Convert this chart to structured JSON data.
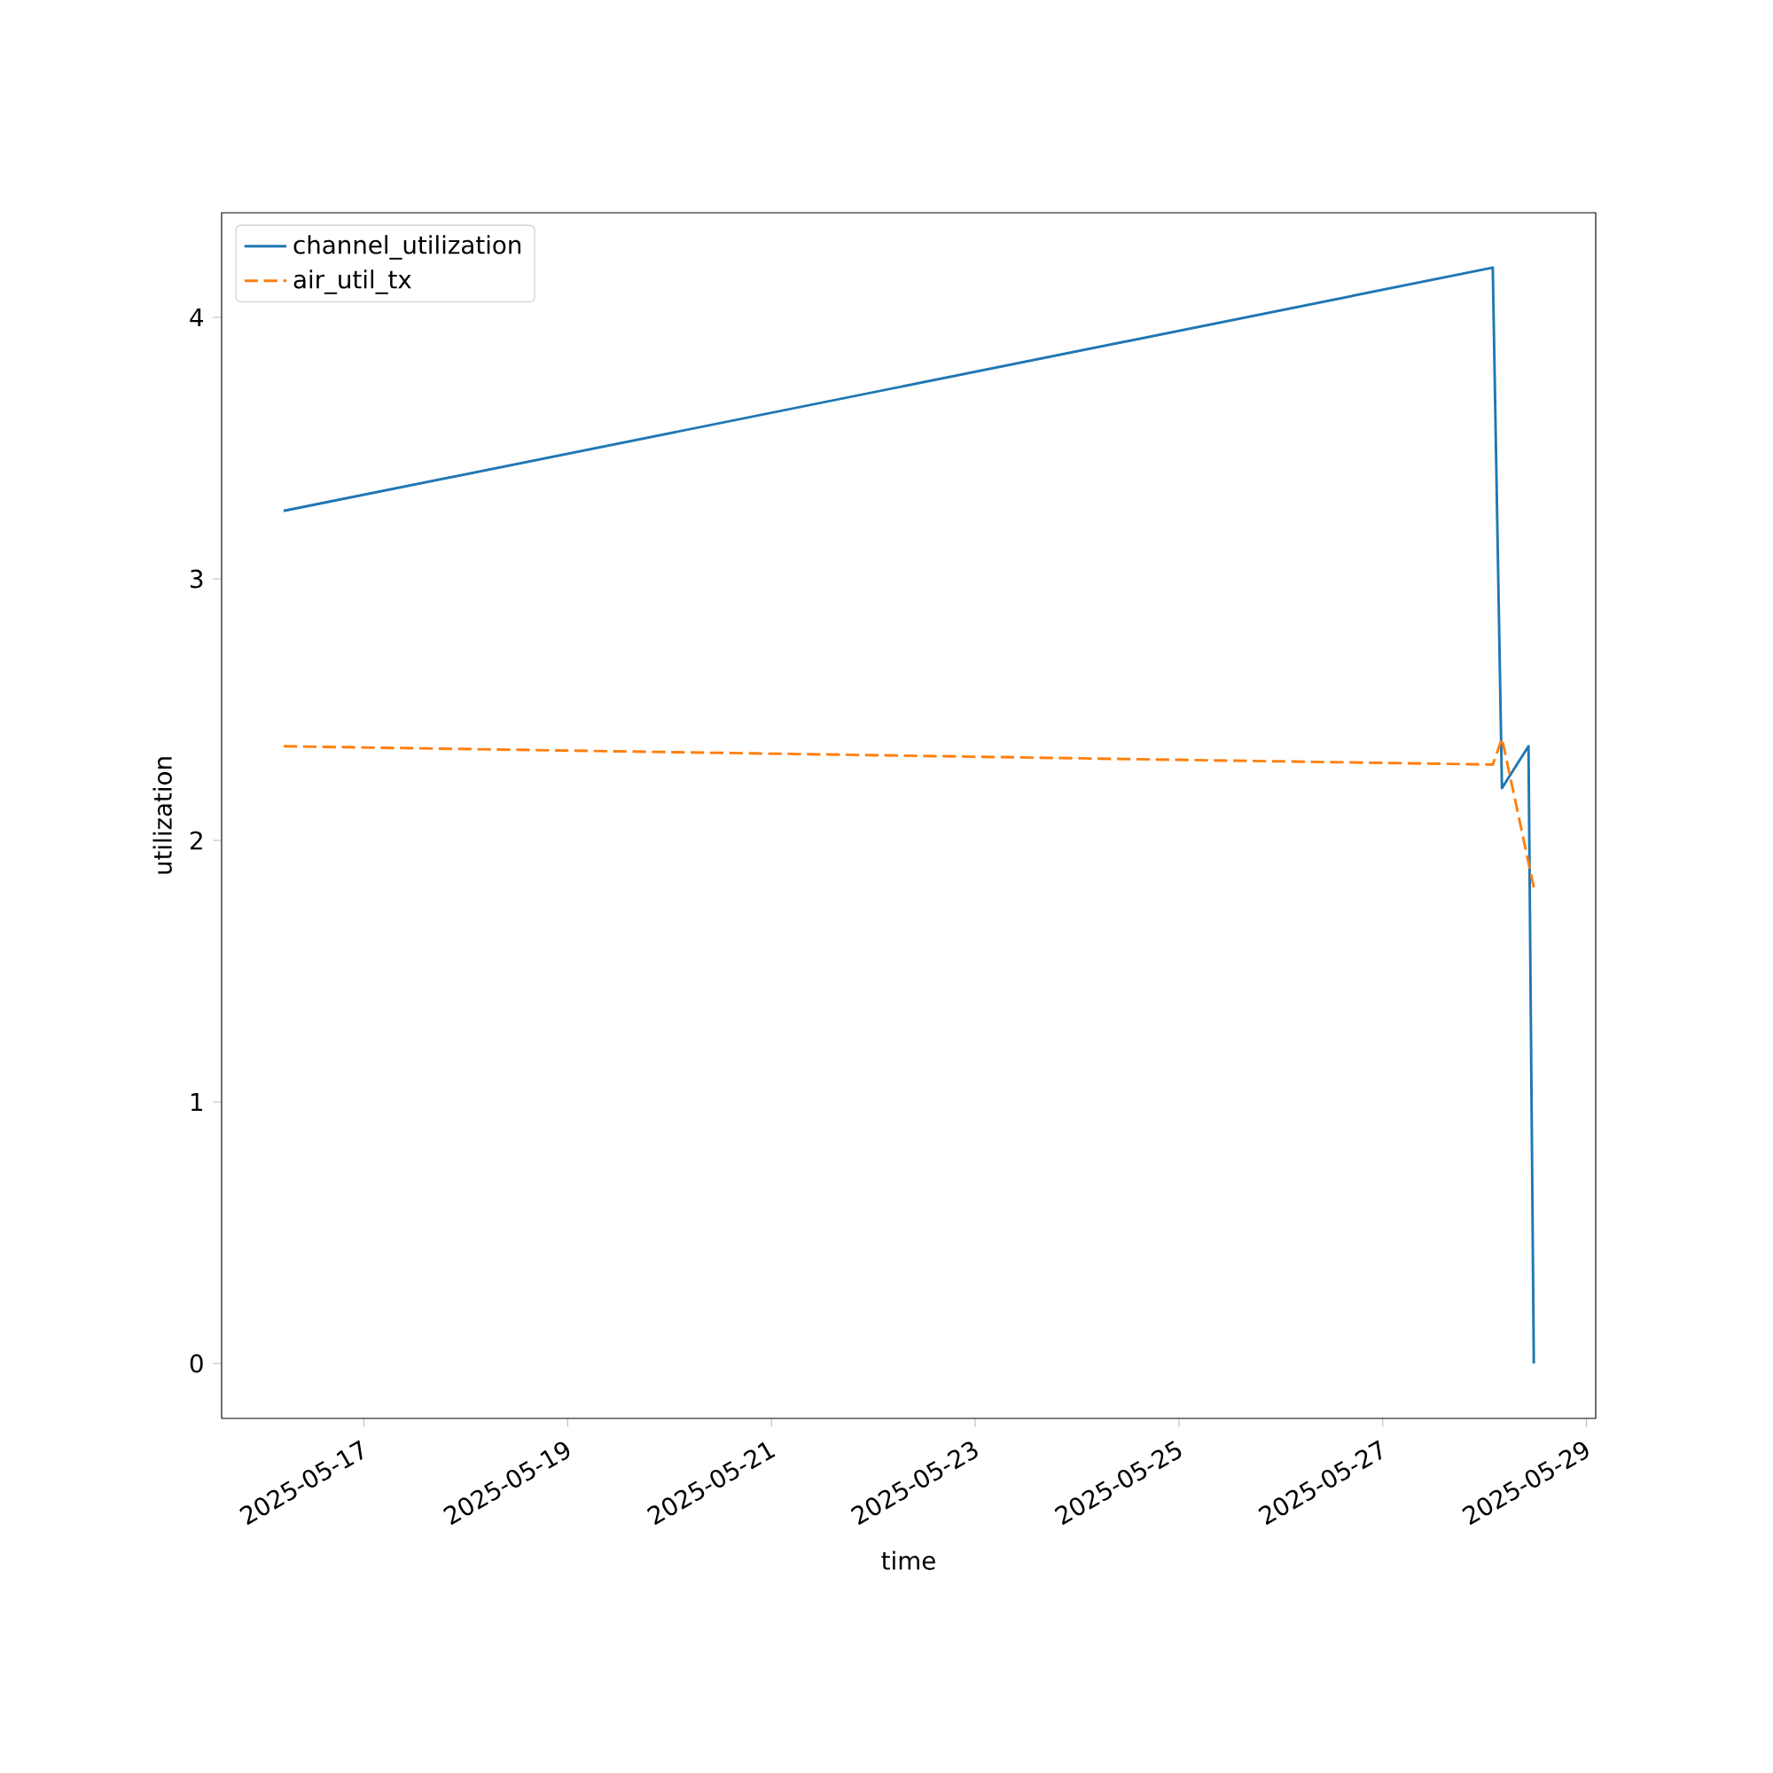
{
  "chart_data": {
    "type": "line",
    "xlabel": "time",
    "ylabel": "utilization",
    "x": [
      "2025-05-16T05:07",
      "2025-05-28T01:55",
      "2025-05-28T04:05",
      "2025-05-28T10:20",
      "2025-05-28T11:35"
    ],
    "series": [
      {
        "name": "channel_utilization",
        "color": "#1f77b4",
        "line_style": "solid",
        "values": [
          3.26,
          4.19,
          2.2,
          2.36,
          0
        ]
      },
      {
        "name": "air_util_tx",
        "color": "#ff7f0e",
        "line_style": "dashed",
        "x": [
          "2025-05-16T05:07",
          "2025-05-28T01:55",
          "2025-05-28T04:05",
          "2025-05-28T11:35"
        ],
        "values": [
          2.36,
          2.29,
          2.39,
          1.82
        ]
      }
    ],
    "xlim": [
      "2025-05-15T14:30",
      "2025-05-29T02:10"
    ],
    "xticks": [
      "2025-05-17",
      "2025-05-19",
      "2025-05-21",
      "2025-05-23",
      "2025-05-25",
      "2025-05-27",
      "2025-05-29"
    ],
    "ylim": [
      -0.21,
      4.4
    ],
    "yticks": [
      0,
      1,
      2,
      3,
      4
    ],
    "grid": false,
    "legend": "top left",
    "marker": "none"
  }
}
